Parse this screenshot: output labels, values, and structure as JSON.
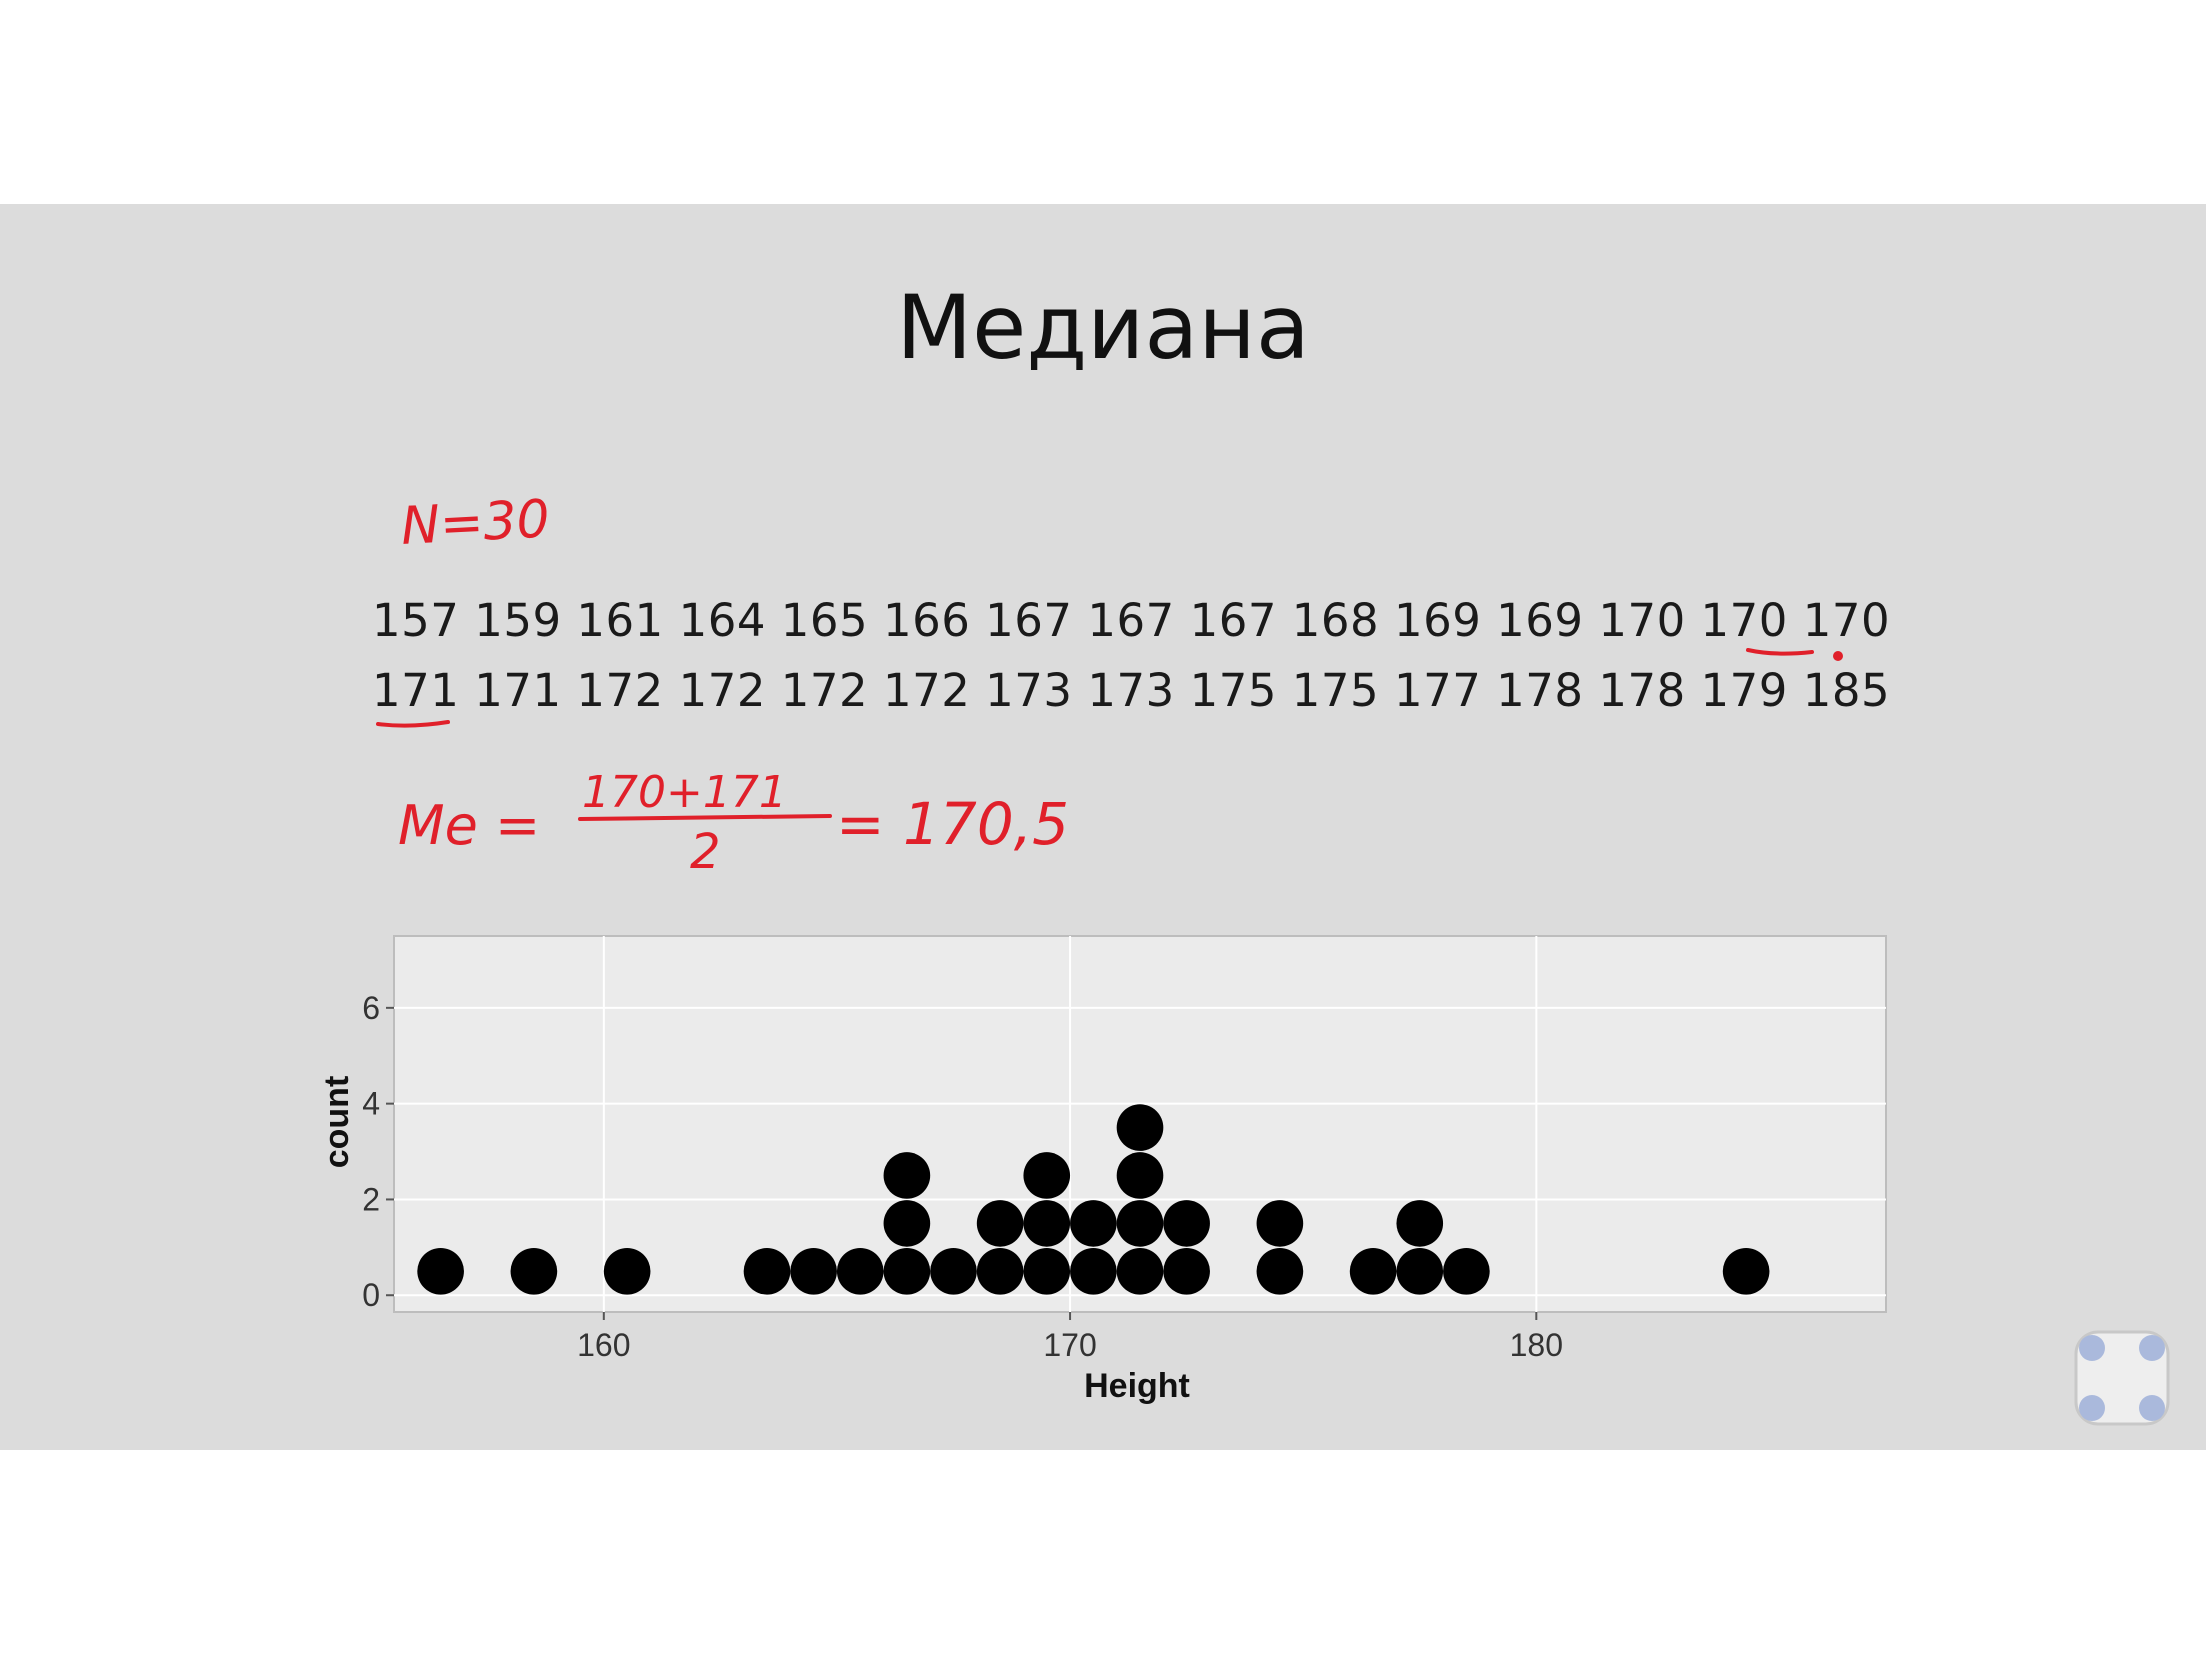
{
  "slide": {
    "title": "Медиана",
    "data_rows": [
      "157 159 161 164 165 166 167 167 167 168 169 169 170 170 170",
      "171 171 172 172 172 172 173 173 175 175 177 178 178 179 185"
    ]
  },
  "handwriting": {
    "n_note": "N=30",
    "median_lhs": "Me =",
    "median_numerator": "170+171",
    "median_denominator": "2",
    "median_rhs": "= 170,5",
    "color": "#e0202a"
  },
  "chart_data": {
    "type": "scatter",
    "subtype": "dotplot",
    "title": "",
    "xlabel": "Height",
    "ylabel": "count",
    "xlim": [
      155.5,
      187.5
    ],
    "ylim": [
      -0.35,
      7.5
    ],
    "x_ticks": [
      160,
      170,
      180
    ],
    "y_ticks": [
      0,
      2,
      4,
      6
    ],
    "grid": true,
    "dot_color": "#000000",
    "panel_color": "#ebebeb",
    "points": [
      [
        156.5,
        0.5
      ],
      [
        158.5,
        0.5
      ],
      [
        160.5,
        0.5
      ],
      [
        163.5,
        0.5
      ],
      [
        164.5,
        0.5
      ],
      [
        165.5,
        0.5
      ],
      [
        166.5,
        0.5
      ],
      [
        166.5,
        1.5
      ],
      [
        166.5,
        2.5
      ],
      [
        167.5,
        0.5
      ],
      [
        168.5,
        0.5
      ],
      [
        168.5,
        1.5
      ],
      [
        169.5,
        0.5
      ],
      [
        169.5,
        1.5
      ],
      [
        169.5,
        2.5
      ],
      [
        170.5,
        0.5
      ],
      [
        170.5,
        1.5
      ],
      [
        171.5,
        0.5
      ],
      [
        171.5,
        1.5
      ],
      [
        171.5,
        2.5
      ],
      [
        171.5,
        3.5
      ],
      [
        172.5,
        0.5
      ],
      [
        172.5,
        1.5
      ],
      [
        174.5,
        0.5
      ],
      [
        174.5,
        1.5
      ],
      [
        176.5,
        0.5
      ],
      [
        177.5,
        0.5
      ],
      [
        177.5,
        1.5
      ],
      [
        178.5,
        0.5
      ],
      [
        184.5,
        0.5
      ]
    ]
  }
}
